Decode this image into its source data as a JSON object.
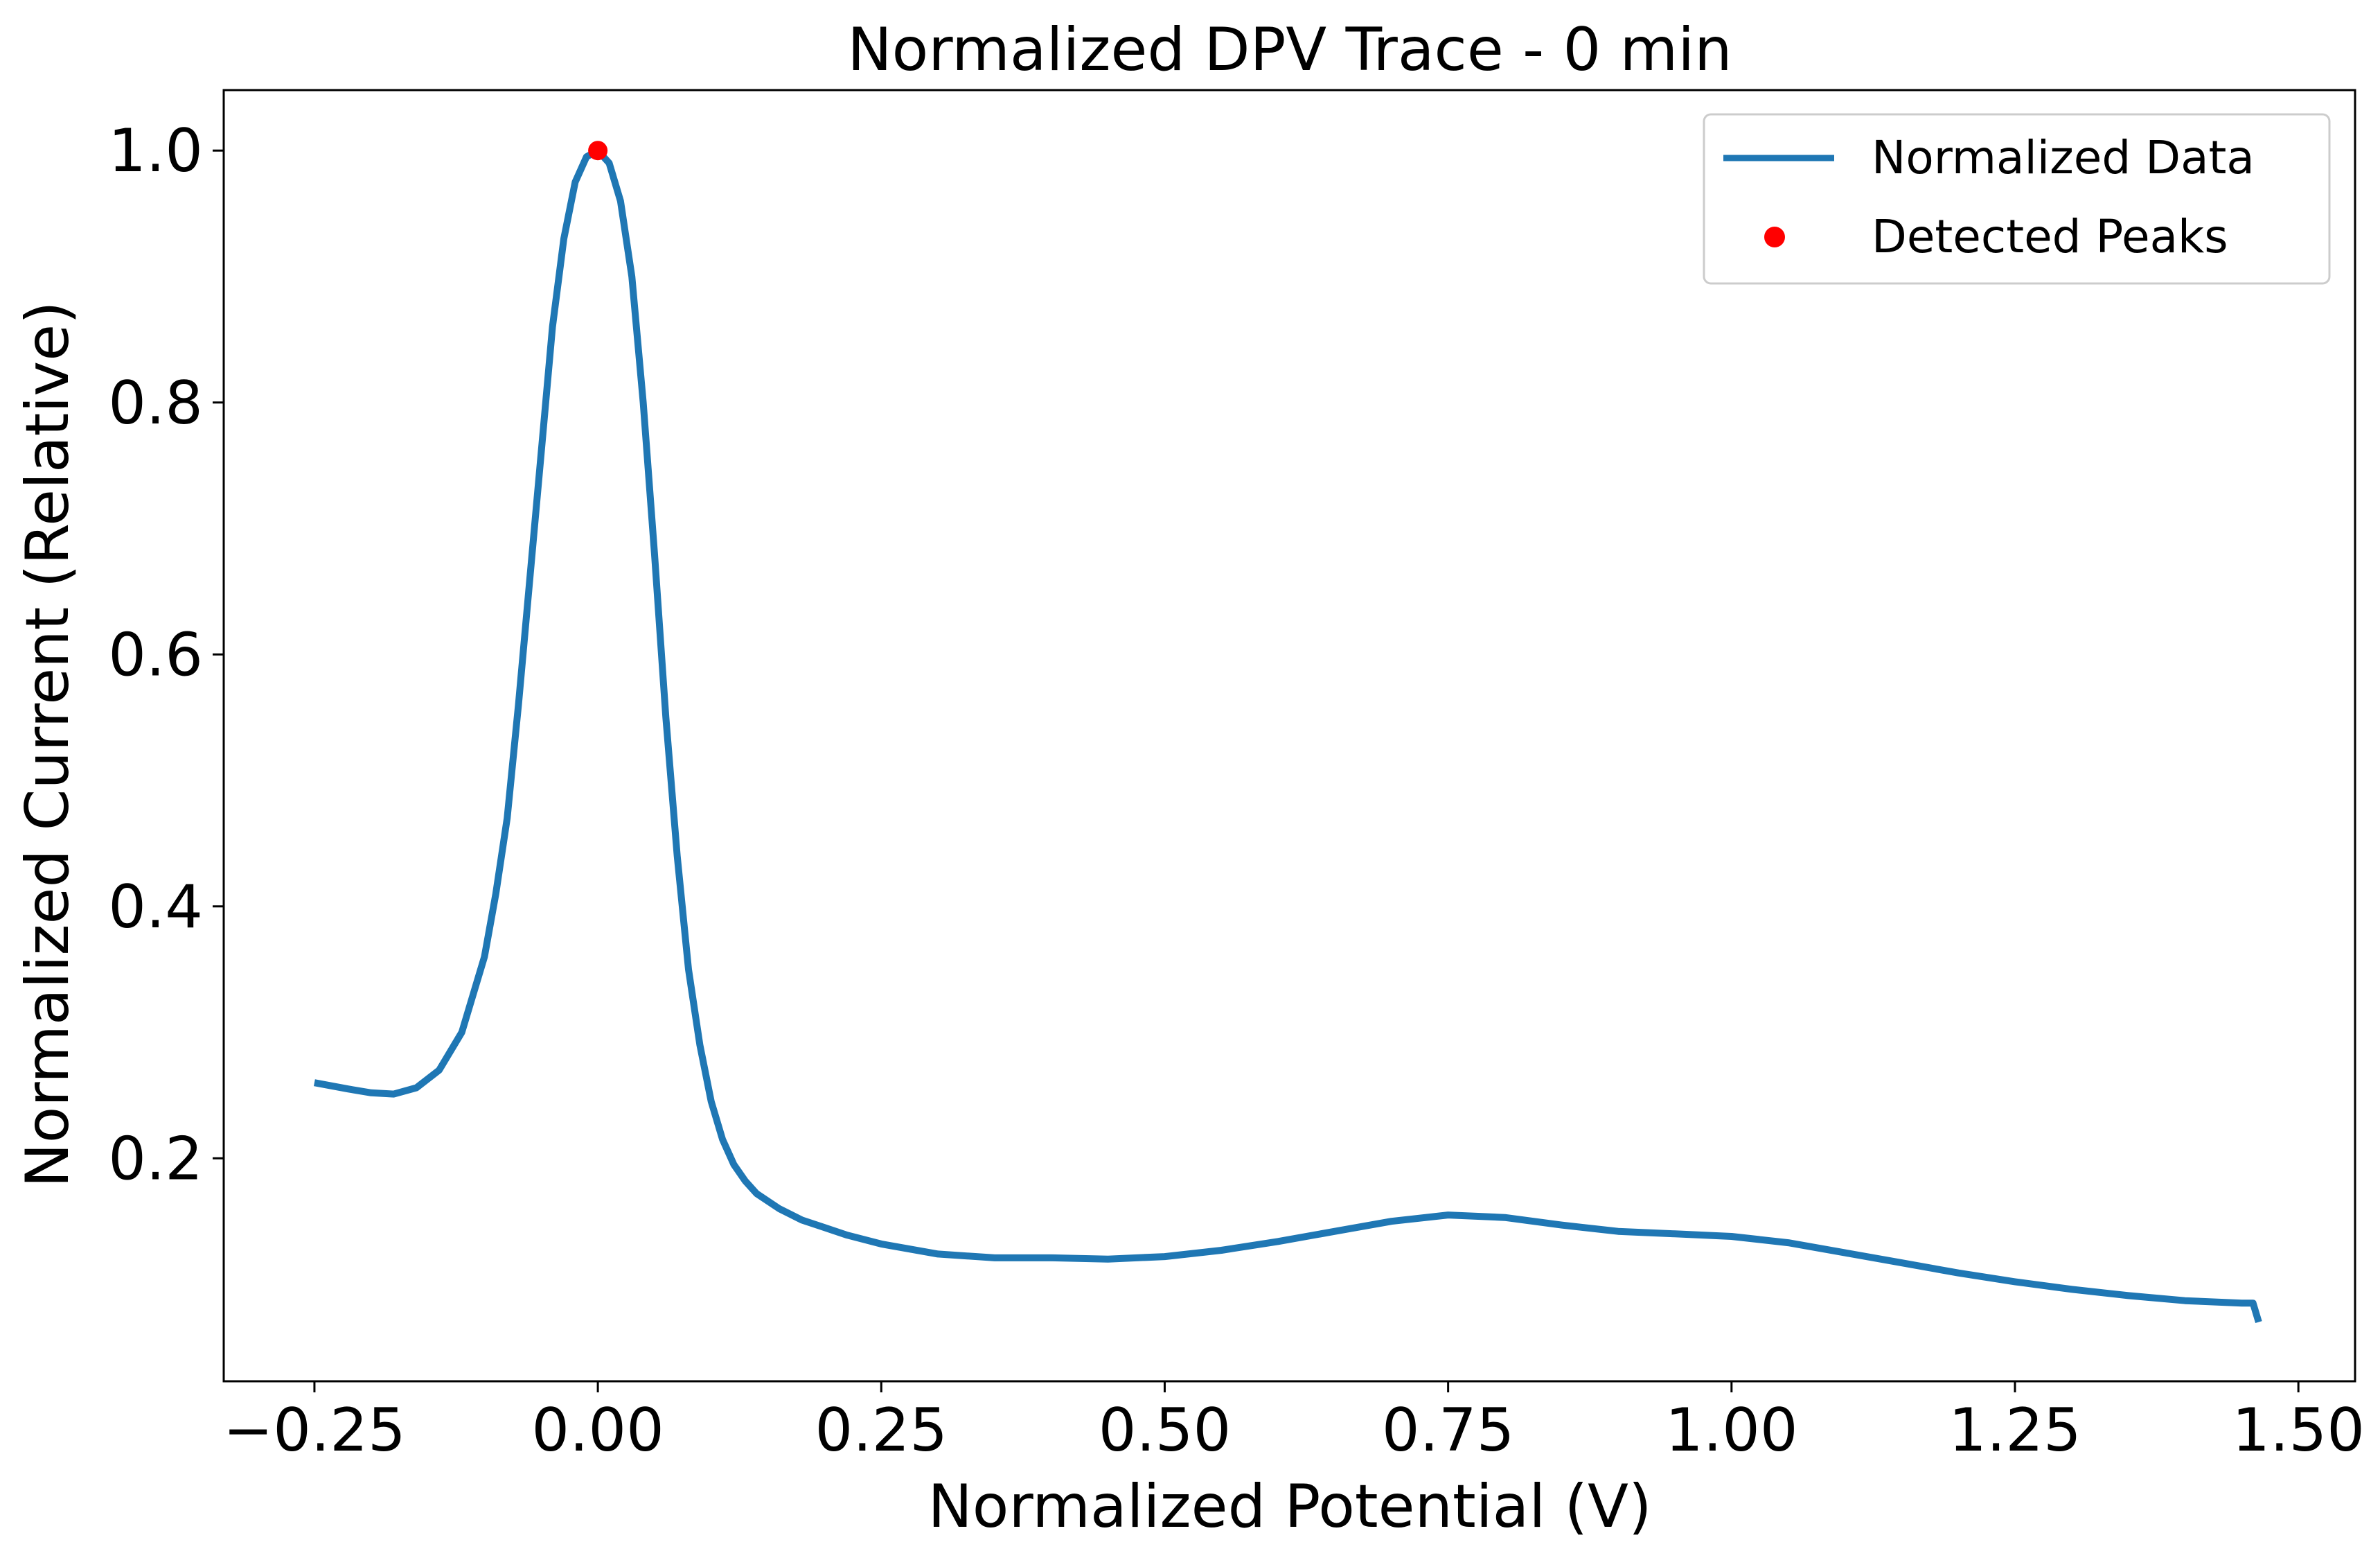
{
  "chart_data": {
    "type": "line",
    "title": "Normalized DPV Trace - 0 min",
    "xlabel": "Normalized Potential (V)",
    "ylabel": "Normalized Current (Relative)",
    "xlim": [
      -0.33,
      1.55
    ],
    "ylim": [
      0.023,
      1.048
    ],
    "xticks": [
      -0.25,
      0.0,
      0.25,
      0.5,
      0.75,
      1.0,
      1.25,
      1.5
    ],
    "xtick_labels": [
      "−0.25",
      "0.00",
      "0.25",
      "0.50",
      "0.75",
      "1.00",
      "1.25",
      "1.50"
    ],
    "yticks": [
      0.2,
      0.4,
      0.6,
      0.8,
      1.0
    ],
    "ytick_labels": [
      "0.2",
      "0.4",
      "0.6",
      "0.8",
      "1.0"
    ],
    "grid": false,
    "legend_position": "top-right",
    "series": [
      {
        "name": "Normalized Data",
        "color": "#1f77b4",
        "style": "line",
        "x": [
          -0.25,
          -0.22,
          -0.2,
          -0.18,
          -0.16,
          -0.14,
          -0.12,
          -0.1,
          -0.09,
          -0.08,
          -0.07,
          -0.06,
          -0.05,
          -0.04,
          -0.03,
          -0.02,
          -0.01,
          0.0,
          0.01,
          0.02,
          0.03,
          0.04,
          0.05,
          0.06,
          0.07,
          0.08,
          0.09,
          0.1,
          0.11,
          0.12,
          0.13,
          0.14,
          0.16,
          0.18,
          0.2,
          0.22,
          0.25,
          0.3,
          0.35,
          0.4,
          0.45,
          0.5,
          0.55,
          0.6,
          0.65,
          0.7,
          0.75,
          0.8,
          0.85,
          0.9,
          0.95,
          1.0,
          1.05,
          1.1,
          1.15,
          1.2,
          1.25,
          1.3,
          1.35,
          1.4,
          1.45,
          1.46,
          1.465
        ],
        "y": [
          0.26,
          0.255,
          0.252,
          0.251,
          0.256,
          0.27,
          0.3,
          0.36,
          0.41,
          0.47,
          0.56,
          0.66,
          0.76,
          0.86,
          0.93,
          0.975,
          0.995,
          1.0,
          0.99,
          0.96,
          0.9,
          0.8,
          0.68,
          0.55,
          0.44,
          0.35,
          0.29,
          0.245,
          0.215,
          0.195,
          0.182,
          0.172,
          0.16,
          0.151,
          0.145,
          0.139,
          0.132,
          0.124,
          0.121,
          0.121,
          0.12,
          0.122,
          0.127,
          0.134,
          0.142,
          0.15,
          0.155,
          0.153,
          0.147,
          0.142,
          0.14,
          0.138,
          0.133,
          0.125,
          0.117,
          0.109,
          0.102,
          0.096,
          0.091,
          0.087,
          0.085,
          0.085,
          0.07
        ]
      },
      {
        "name": "Detected Peaks",
        "color": "#ff0000",
        "style": "scatter",
        "x": [
          0.0
        ],
        "y": [
          1.0
        ]
      }
    ]
  }
}
